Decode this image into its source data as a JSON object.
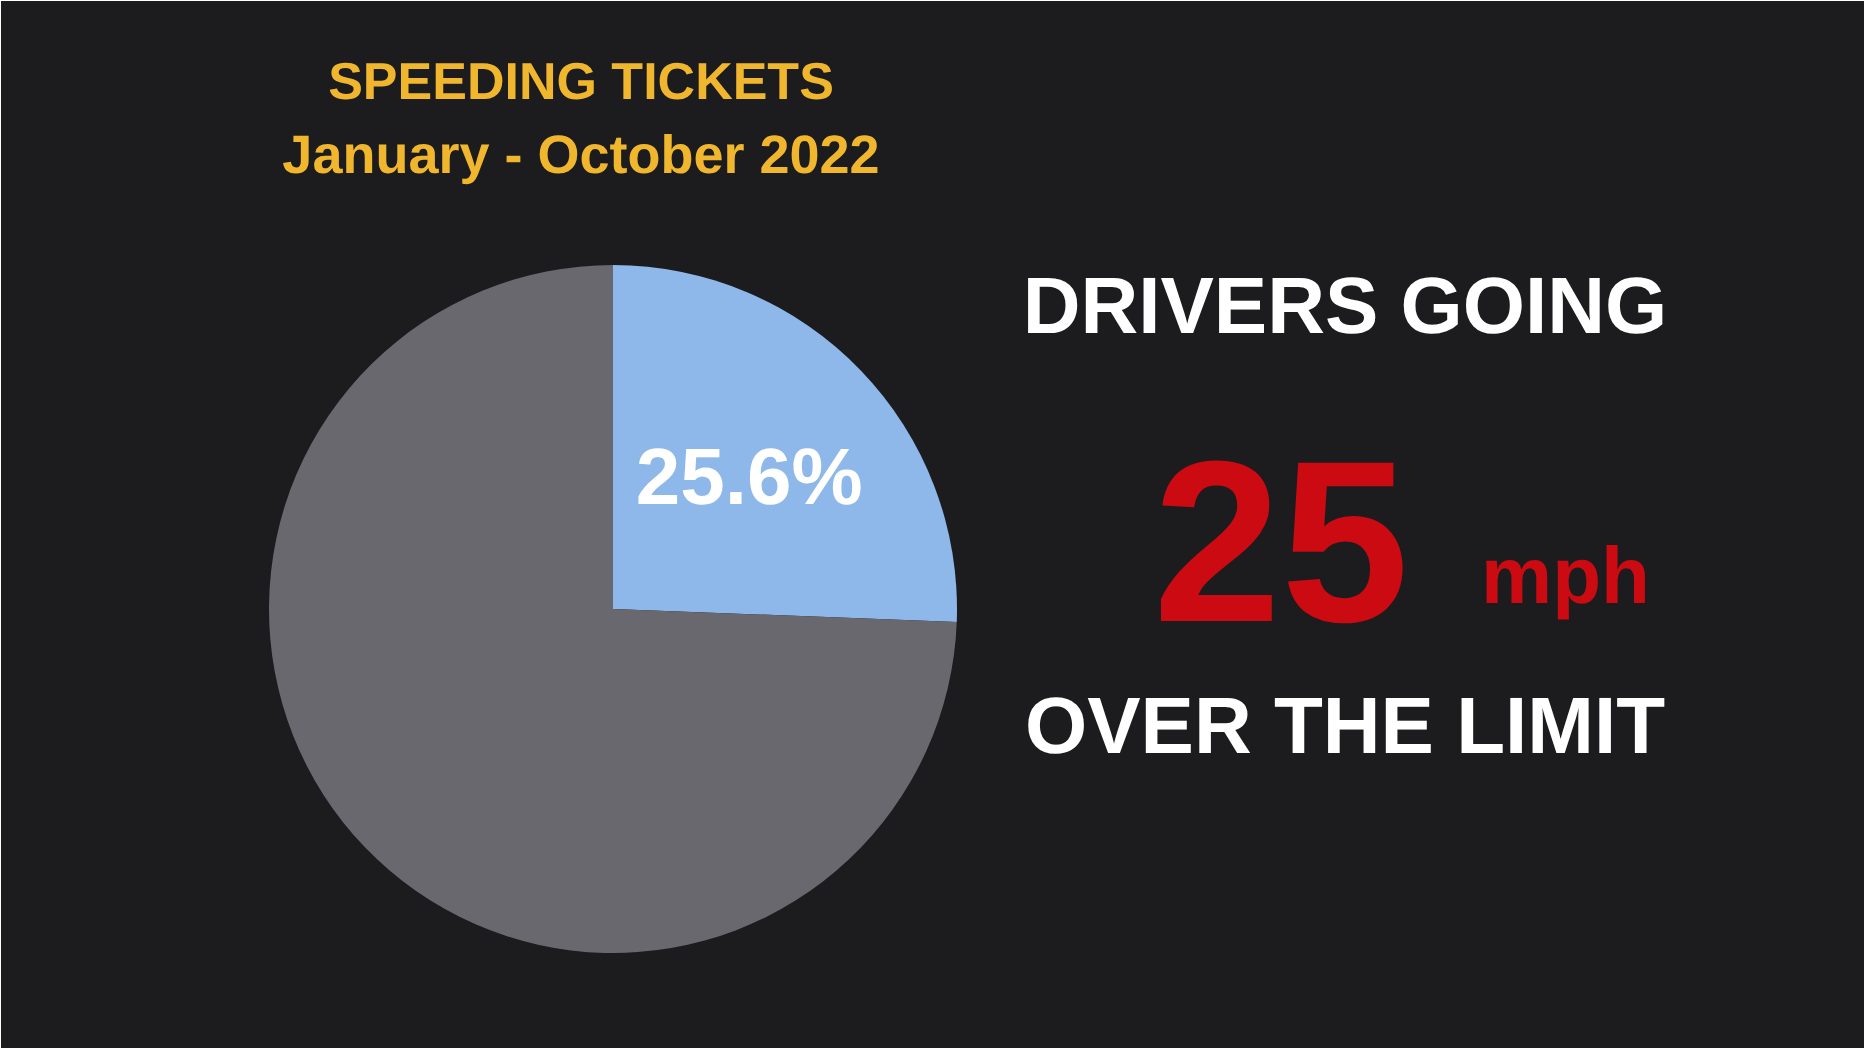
{
  "chart_data": {
    "type": "pie",
    "title": "SPEEDING TICKETS",
    "subtitle": "January - October 2022",
    "categories": [
      null,
      null
    ],
    "values": [
      25.6,
      74.4
    ],
    "colors": [
      "#8fb8ea",
      "#68686e"
    ],
    "value_labels": [
      "25.6%",
      null
    ],
    "annotations": [
      "DRIVERS GOING",
      "25",
      "mph",
      "OVER THE LIMIT"
    ]
  }
}
